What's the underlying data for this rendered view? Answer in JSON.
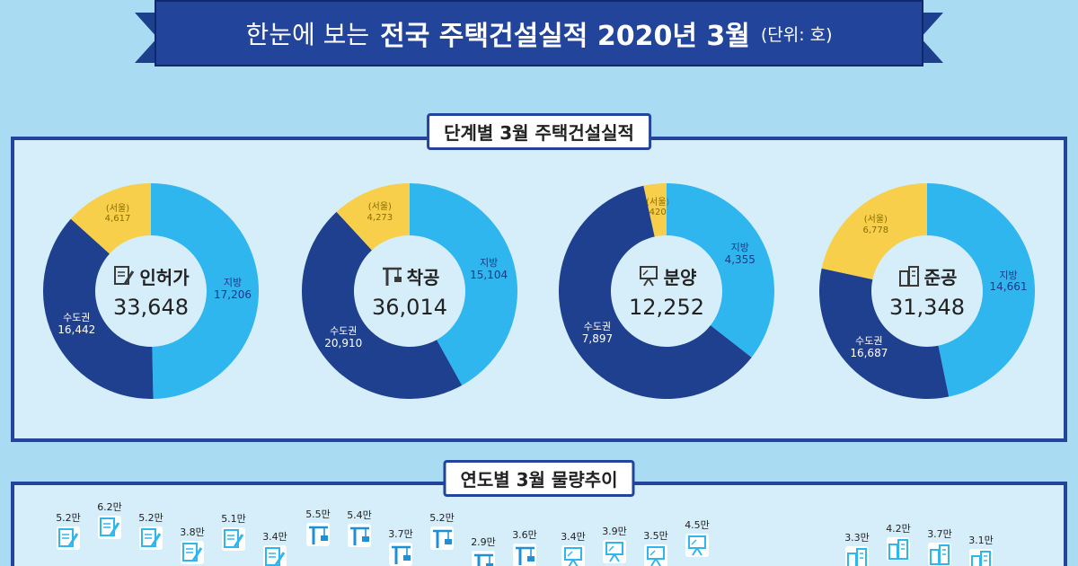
{
  "header": {
    "title_regular": "한눈에 보는",
    "title_bold": "전국 주택건설실적 2020년 3월",
    "unit": "(단위: 호)"
  },
  "stage_panel": {
    "title": "단계별 3월 주택건설실적"
  },
  "year_panel": {
    "title": "연도별 3월 물량추이"
  },
  "colors": {
    "capital": "#1f3f8f",
    "regional": "#2fb6ee",
    "seoul": "#f7cf4a",
    "inner": "#d5eefa"
  },
  "chart_data": [
    {
      "type": "pie",
      "stage": "인허가",
      "total": "33,648",
      "icon": "document-pen-icon",
      "slices": [
        {
          "name": "지방",
          "value": 17206,
          "label": "17,206"
        },
        {
          "name": "수도권",
          "value": 12825,
          "label": "16,442",
          "group_total": 16442
        },
        {
          "name": "(서울)",
          "value": 4617,
          "label": "4,617"
        }
      ]
    },
    {
      "type": "pie",
      "stage": "착공",
      "total": "36,014",
      "icon": "crane-icon",
      "slices": [
        {
          "name": "지방",
          "value": 15104,
          "label": "15,104"
        },
        {
          "name": "수도권",
          "value": 16637,
          "label": "20,910",
          "group_total": 20910
        },
        {
          "name": "(서울)",
          "value": 4273,
          "label": "4,273"
        }
      ]
    },
    {
      "type": "pie",
      "stage": "분양",
      "total": "12,252",
      "icon": "presentation-board-icon",
      "slices": [
        {
          "name": "지방",
          "value": 4355,
          "label": "4,355"
        },
        {
          "name": "수도권",
          "value": 7477,
          "label": "7,897",
          "group_total": 7897
        },
        {
          "name": "(서울)",
          "value": 420,
          "label": "420"
        }
      ]
    },
    {
      "type": "pie",
      "stage": "준공",
      "total": "31,348",
      "icon": "buildings-icon",
      "slices": [
        {
          "name": "지방",
          "value": 14661,
          "label": "14,661"
        },
        {
          "name": "수도권",
          "value": 9909,
          "label": "16,687",
          "group_total": 16687
        },
        {
          "name": "(서울)",
          "value": 6778,
          "label": "6,778"
        }
      ]
    },
    {
      "type": "bar",
      "title": "연도별 3월 물량추이",
      "groups": [
        {
          "stage": "인허가",
          "icon": "document-pen-icon",
          "values": [
            "5.2만",
            "6.2만",
            "5.2만",
            "3.8만",
            "5.1만",
            "3.4만"
          ]
        },
        {
          "stage": "착공",
          "icon": "crane-icon",
          "values": [
            "5.5만",
            "5.4만",
            "3.7만",
            "5.2만",
            "2.9만",
            "3.6만"
          ]
        },
        {
          "stage": "분양",
          "icon": "presentation-board-icon",
          "values": [
            "3.4만",
            "3.9만",
            "3.5만",
            "4.5만"
          ]
        },
        {
          "stage": "준공",
          "icon": "buildings-icon",
          "values": [
            "3.3만",
            "4.2만",
            "3.7만",
            "3.1만"
          ]
        }
      ]
    }
  ]
}
